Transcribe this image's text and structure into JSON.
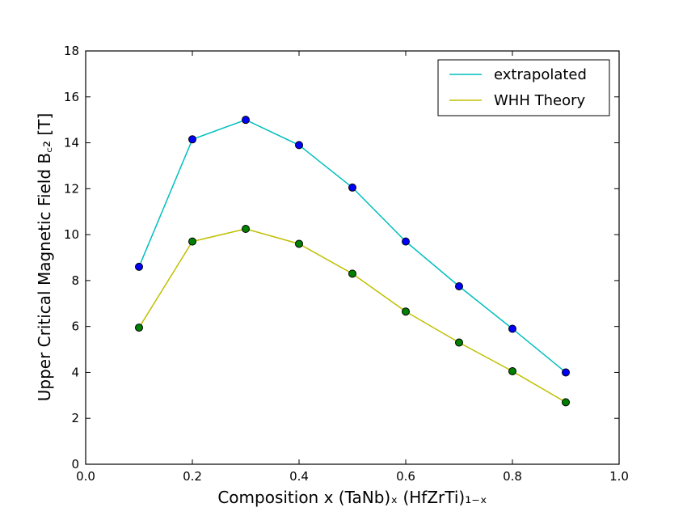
{
  "chart_data": {
    "type": "line",
    "xlabel": "Composition x (TaNb)ₓ (HfZrTi)₁₋ₓ",
    "ylabel": "Upper Critical Magnetic Field B꜀₂ [T]",
    "xlim": [
      0.0,
      1.0
    ],
    "ylim": [
      0,
      18
    ],
    "x_ticks": [
      "0.0",
      "0.2",
      "0.4",
      "0.6",
      "0.8",
      "1.0"
    ],
    "y_ticks": [
      "0",
      "2",
      "4",
      "6",
      "8",
      "10",
      "12",
      "14",
      "16",
      "18"
    ],
    "x": [
      0.1,
      0.2,
      0.3,
      0.4,
      0.5,
      0.6,
      0.7,
      0.8,
      0.9
    ],
    "series": [
      {
        "name": "extrapolated",
        "line_color": "#00bfbf",
        "marker_color": "#0000ff",
        "values": [
          8.6,
          14.15,
          15.0,
          13.9,
          12.05,
          9.7,
          7.75,
          5.9,
          4.0
        ]
      },
      {
        "name": "WHH Theory",
        "line_color": "#bfbf00",
        "marker_color": "#008000",
        "values": [
          5.95,
          9.7,
          10.25,
          9.6,
          8.3,
          6.65,
          5.3,
          4.05,
          2.7
        ]
      }
    ],
    "legend_position": "top-right",
    "grid": false
  }
}
